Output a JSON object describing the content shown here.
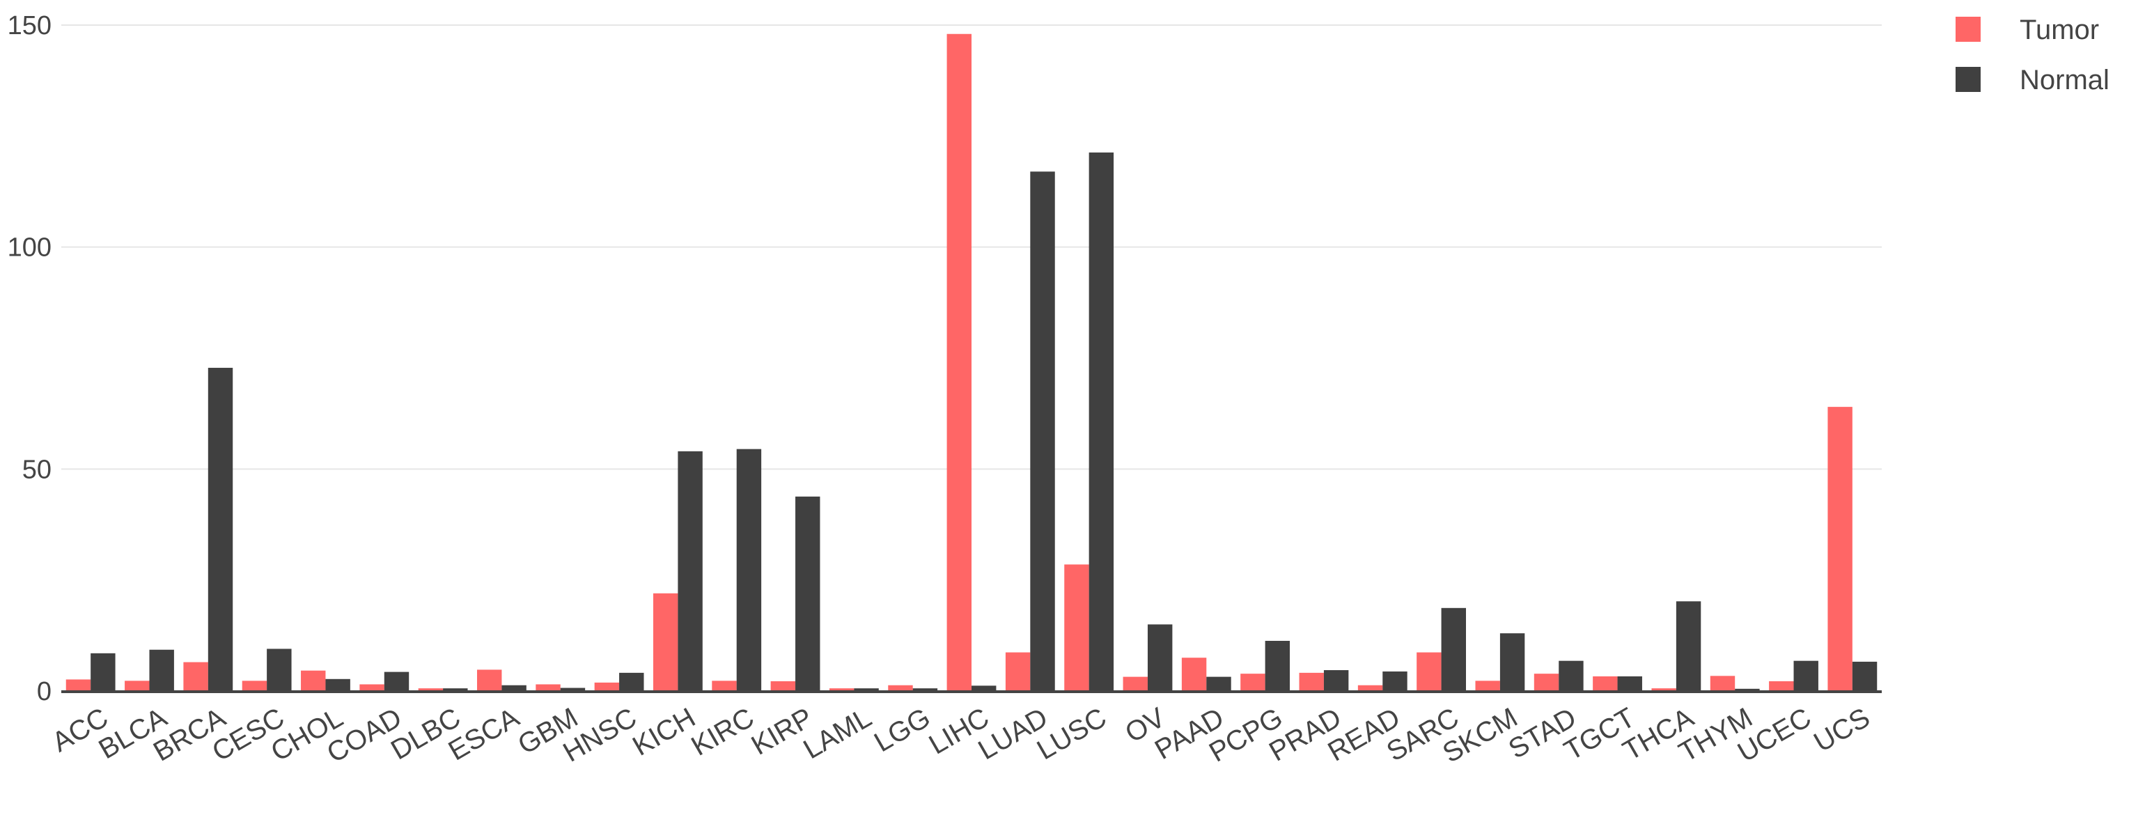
{
  "chart_data": {
    "type": "bar",
    "categories": [
      "ACC",
      "BLCA",
      "BRCA",
      "CESC",
      "CHOL",
      "COAD",
      "DLBC",
      "ESCA",
      "GBM",
      "HNSC",
      "KICH",
      "KIRC",
      "KIRP",
      "LAML",
      "LGG",
      "LIHC",
      "LUAD",
      "LUSC",
      "OV",
      "PAAD",
      "PCPG",
      "PRAD",
      "READ",
      "SARC",
      "SKCM",
      "STAD",
      "TGCT",
      "THCA",
      "THYM",
      "UCEC",
      "UCS"
    ],
    "series": [
      {
        "name": "Tumor",
        "color": "#ff6666",
        "values": [
          2.6,
          2.3,
          6.5,
          2.3,
          4.6,
          1.5,
          0.6,
          4.8,
          1.5,
          1.9,
          22,
          2.3,
          2.2,
          0.6,
          1.3,
          148,
          8.7,
          28.5,
          3.2,
          7.5,
          3.9,
          4.1,
          1.3,
          8.7,
          2.3,
          3.9,
          3.3,
          0.6,
          3.4,
          2.2,
          64
        ]
      },
      {
        "name": "Normal",
        "color": "#404040",
        "values": [
          8.5,
          9.3,
          72.8,
          9.5,
          2.7,
          4.3,
          0.6,
          1.3,
          0.7,
          4.1,
          54,
          54.5,
          43.8,
          0.6,
          0.6,
          1.2,
          117,
          121.3,
          15,
          3.2,
          11.3,
          4.7,
          4.4,
          18.7,
          13,
          6.8,
          3.3,
          20.2,
          0.5,
          6.8,
          6.6
        ]
      }
    ],
    "ylim": [
      0,
      150
    ],
    "yticks": [
      0,
      50,
      100,
      150
    ],
    "grid": true,
    "legend_position": "top-right"
  }
}
